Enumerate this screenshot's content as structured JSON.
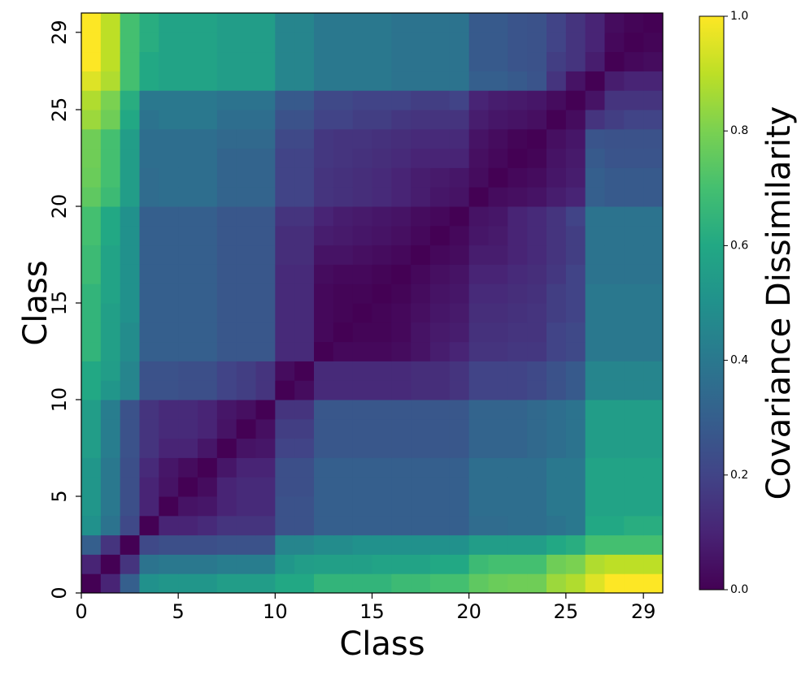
{
  "chart_data": {
    "type": "heatmap",
    "colormap": "viridis",
    "x_label": "Class",
    "y_label": "Class",
    "xlim": [
      0,
      30
    ],
    "xticks": [
      0,
      5,
      10,
      15,
      20,
      25,
      29
    ],
    "ylim": [
      0,
      30
    ],
    "yticks": [
      0,
      5,
      10,
      15,
      20,
      25,
      29
    ],
    "colorbar": {
      "label": "Covariance Dissimilarity",
      "lim": [
        0,
        1
      ],
      "ticks": [
        {
          "value": 0,
          "label": "0.0"
        },
        {
          "value": 0.2,
          "label": "0.2"
        },
        {
          "value": 0.4,
          "label": "0.4"
        },
        {
          "value": 0.6,
          "label": "0.6"
        },
        {
          "value": 0.8,
          "label": "0.8"
        },
        {
          "value": 1,
          "label": "1.0"
        }
      ]
    },
    "values": [
      [
        0,
        0.1,
        0.3,
        0.5,
        0.52,
        0.52,
        0.52,
        0.55,
        0.55,
        0.55,
        0.6,
        0.6,
        0.65,
        0.65,
        0.65,
        0.65,
        0.68,
        0.68,
        0.7,
        0.7,
        0.75,
        0.77,
        0.78,
        0.78,
        0.85,
        0.88,
        0.95,
        1,
        1,
        1
      ],
      [
        0.1,
        0,
        0.15,
        0.38,
        0.4,
        0.4,
        0.4,
        0.42,
        0.42,
        0.42,
        0.52,
        0.55,
        0.56,
        0.56,
        0.56,
        0.58,
        0.58,
        0.58,
        0.6,
        0.6,
        0.68,
        0.7,
        0.7,
        0.7,
        0.78,
        0.8,
        0.88,
        0.9,
        0.9,
        0.9
      ],
      [
        0.3,
        0.15,
        0,
        0.22,
        0.24,
        0.24,
        0.24,
        0.25,
        0.25,
        0.25,
        0.45,
        0.45,
        0.48,
        0.48,
        0.5,
        0.5,
        0.5,
        0.5,
        0.5,
        0.5,
        0.55,
        0.55,
        0.55,
        0.55,
        0.6,
        0.62,
        0.7,
        0.7,
        0.7,
        0.7
      ],
      [
        0.5,
        0.38,
        0.22,
        0,
        0.1,
        0.1,
        0.12,
        0.15,
        0.15,
        0.15,
        0.25,
        0.25,
        0.3,
        0.3,
        0.3,
        0.3,
        0.3,
        0.3,
        0.3,
        0.3,
        0.35,
        0.35,
        0.36,
        0.36,
        0.38,
        0.4,
        0.6,
        0.6,
        0.62,
        0.62
      ],
      [
        0.52,
        0.4,
        0.24,
        0.1,
        0,
        0.05,
        0.06,
        0.1,
        0.12,
        0.12,
        0.25,
        0.25,
        0.3,
        0.3,
        0.3,
        0.3,
        0.3,
        0.3,
        0.3,
        0.3,
        0.36,
        0.36,
        0.36,
        0.36,
        0.4,
        0.4,
        0.58,
        0.58,
        0.58,
        0.58
      ],
      [
        0.52,
        0.4,
        0.24,
        0.1,
        0.05,
        0,
        0.03,
        0.1,
        0.12,
        0.12,
        0.24,
        0.24,
        0.3,
        0.3,
        0.3,
        0.3,
        0.3,
        0.3,
        0.3,
        0.3,
        0.36,
        0.36,
        0.36,
        0.36,
        0.4,
        0.4,
        0.58,
        0.58,
        0.58,
        0.58
      ],
      [
        0.52,
        0.4,
        0.24,
        0.12,
        0.06,
        0.03,
        0,
        0.06,
        0.1,
        0.1,
        0.24,
        0.24,
        0.3,
        0.3,
        0.3,
        0.3,
        0.3,
        0.3,
        0.3,
        0.3,
        0.36,
        0.36,
        0.36,
        0.36,
        0.4,
        0.4,
        0.58,
        0.58,
        0.58,
        0.58
      ],
      [
        0.55,
        0.42,
        0.25,
        0.15,
        0.1,
        0.1,
        0.06,
        0,
        0.05,
        0.06,
        0.2,
        0.2,
        0.27,
        0.27,
        0.27,
        0.27,
        0.27,
        0.27,
        0.27,
        0.27,
        0.32,
        0.32,
        0.32,
        0.34,
        0.36,
        0.38,
        0.55,
        0.55,
        0.55,
        0.55
      ],
      [
        0.55,
        0.42,
        0.25,
        0.15,
        0.12,
        0.12,
        0.1,
        0.05,
        0,
        0.04,
        0.18,
        0.18,
        0.27,
        0.27,
        0.27,
        0.27,
        0.27,
        0.27,
        0.27,
        0.27,
        0.32,
        0.32,
        0.32,
        0.34,
        0.36,
        0.38,
        0.55,
        0.55,
        0.55,
        0.55
      ],
      [
        0.55,
        0.42,
        0.25,
        0.15,
        0.12,
        0.12,
        0.1,
        0.06,
        0.04,
        0,
        0.15,
        0.15,
        0.27,
        0.27,
        0.27,
        0.27,
        0.27,
        0.27,
        0.27,
        0.27,
        0.32,
        0.32,
        0.32,
        0.34,
        0.36,
        0.38,
        0.55,
        0.55,
        0.55,
        0.55
      ],
      [
        0.6,
        0.52,
        0.45,
        0.25,
        0.25,
        0.24,
        0.24,
        0.2,
        0.18,
        0.15,
        0,
        0.03,
        0.12,
        0.12,
        0.12,
        0.12,
        0.12,
        0.13,
        0.13,
        0.15,
        0.2,
        0.2,
        0.2,
        0.22,
        0.25,
        0.28,
        0.45,
        0.45,
        0.45,
        0.45
      ],
      [
        0.6,
        0.55,
        0.45,
        0.25,
        0.25,
        0.24,
        0.24,
        0.2,
        0.18,
        0.15,
        0.03,
        0,
        0.12,
        0.12,
        0.12,
        0.12,
        0.12,
        0.13,
        0.13,
        0.15,
        0.2,
        0.2,
        0.2,
        0.22,
        0.25,
        0.28,
        0.45,
        0.45,
        0.45,
        0.45
      ],
      [
        0.65,
        0.56,
        0.48,
        0.3,
        0.3,
        0.3,
        0.3,
        0.27,
        0.27,
        0.27,
        0.12,
        0.12,
        0,
        0.02,
        0.02,
        0.02,
        0.03,
        0.05,
        0.08,
        0.1,
        0.15,
        0.15,
        0.16,
        0.16,
        0.2,
        0.22,
        0.4,
        0.4,
        0.4,
        0.4
      ],
      [
        0.65,
        0.56,
        0.48,
        0.3,
        0.3,
        0.3,
        0.3,
        0.27,
        0.27,
        0.27,
        0.12,
        0.12,
        0.02,
        0,
        0.01,
        0.01,
        0.02,
        0.05,
        0.07,
        0.08,
        0.14,
        0.14,
        0.15,
        0.15,
        0.2,
        0.22,
        0.4,
        0.4,
        0.4,
        0.4
      ],
      [
        0.65,
        0.56,
        0.5,
        0.3,
        0.3,
        0.3,
        0.3,
        0.27,
        0.27,
        0.27,
        0.12,
        0.12,
        0.02,
        0.01,
        0,
        0.01,
        0.02,
        0.04,
        0.06,
        0.07,
        0.13,
        0.13,
        0.14,
        0.15,
        0.18,
        0.2,
        0.4,
        0.4,
        0.4,
        0.4
      ],
      [
        0.65,
        0.58,
        0.5,
        0.3,
        0.3,
        0.3,
        0.3,
        0.27,
        0.27,
        0.27,
        0.12,
        0.12,
        0.02,
        0.01,
        0.01,
        0,
        0.01,
        0.03,
        0.05,
        0.06,
        0.12,
        0.12,
        0.13,
        0.14,
        0.18,
        0.2,
        0.4,
        0.4,
        0.4,
        0.4
      ],
      [
        0.68,
        0.58,
        0.5,
        0.3,
        0.3,
        0.3,
        0.3,
        0.27,
        0.27,
        0.27,
        0.12,
        0.12,
        0.03,
        0.02,
        0.02,
        0.01,
        0,
        0.02,
        0.04,
        0.05,
        0.1,
        0.1,
        0.12,
        0.13,
        0.16,
        0.2,
        0.38,
        0.38,
        0.38,
        0.38
      ],
      [
        0.68,
        0.58,
        0.5,
        0.3,
        0.3,
        0.3,
        0.3,
        0.27,
        0.27,
        0.27,
        0.13,
        0.13,
        0.05,
        0.05,
        0.04,
        0.03,
        0.02,
        0,
        0.02,
        0.03,
        0.08,
        0.08,
        0.1,
        0.12,
        0.15,
        0.18,
        0.38,
        0.38,
        0.38,
        0.38
      ],
      [
        0.7,
        0.6,
        0.5,
        0.3,
        0.3,
        0.3,
        0.3,
        0.27,
        0.27,
        0.27,
        0.13,
        0.13,
        0.08,
        0.07,
        0.06,
        0.05,
        0.04,
        0.02,
        0,
        0.02,
        0.06,
        0.07,
        0.1,
        0.12,
        0.15,
        0.18,
        0.38,
        0.38,
        0.38,
        0.38
      ],
      [
        0.7,
        0.6,
        0.5,
        0.3,
        0.3,
        0.3,
        0.3,
        0.27,
        0.27,
        0.27,
        0.15,
        0.15,
        0.1,
        0.08,
        0.07,
        0.06,
        0.05,
        0.03,
        0.02,
        0,
        0.05,
        0.06,
        0.1,
        0.12,
        0.15,
        0.2,
        0.38,
        0.38,
        0.38,
        0.38
      ],
      [
        0.75,
        0.68,
        0.55,
        0.35,
        0.36,
        0.36,
        0.36,
        0.32,
        0.32,
        0.32,
        0.2,
        0.2,
        0.15,
        0.14,
        0.13,
        0.12,
        0.1,
        0.08,
        0.06,
        0.05,
        0,
        0.03,
        0.04,
        0.05,
        0.08,
        0.1,
        0.3,
        0.28,
        0.28,
        0.28
      ],
      [
        0.77,
        0.7,
        0.55,
        0.35,
        0.36,
        0.36,
        0.36,
        0.32,
        0.32,
        0.32,
        0.2,
        0.2,
        0.15,
        0.14,
        0.13,
        0.12,
        0.1,
        0.08,
        0.07,
        0.06,
        0.03,
        0,
        0.02,
        0.03,
        0.06,
        0.08,
        0.3,
        0.28,
        0.28,
        0.28
      ],
      [
        0.78,
        0.7,
        0.55,
        0.36,
        0.36,
        0.36,
        0.36,
        0.32,
        0.32,
        0.32,
        0.2,
        0.2,
        0.16,
        0.15,
        0.14,
        0.13,
        0.12,
        0.1,
        0.1,
        0.1,
        0.04,
        0.02,
        0,
        0.01,
        0.05,
        0.07,
        0.28,
        0.26,
        0.26,
        0.26
      ],
      [
        0.78,
        0.7,
        0.55,
        0.36,
        0.36,
        0.36,
        0.36,
        0.34,
        0.34,
        0.34,
        0.22,
        0.22,
        0.16,
        0.15,
        0.15,
        0.14,
        0.13,
        0.12,
        0.12,
        0.12,
        0.05,
        0.03,
        0.01,
        0,
        0.04,
        0.06,
        0.26,
        0.25,
        0.25,
        0.25
      ],
      [
        0.85,
        0.78,
        0.6,
        0.38,
        0.4,
        0.4,
        0.4,
        0.36,
        0.36,
        0.36,
        0.25,
        0.25,
        0.2,
        0.2,
        0.18,
        0.18,
        0.16,
        0.15,
        0.15,
        0.15,
        0.08,
        0.06,
        0.05,
        0.04,
        0,
        0.03,
        0.15,
        0.18,
        0.2,
        0.2
      ],
      [
        0.88,
        0.8,
        0.62,
        0.4,
        0.4,
        0.4,
        0.4,
        0.38,
        0.38,
        0.38,
        0.28,
        0.28,
        0.22,
        0.22,
        0.2,
        0.2,
        0.2,
        0.18,
        0.18,
        0.2,
        0.1,
        0.08,
        0.07,
        0.06,
        0.03,
        0,
        0.05,
        0.15,
        0.15,
        0.15
      ],
      [
        0.95,
        0.88,
        0.7,
        0.6,
        0.58,
        0.58,
        0.58,
        0.55,
        0.55,
        0.55,
        0.45,
        0.45,
        0.4,
        0.4,
        0.4,
        0.4,
        0.38,
        0.38,
        0.38,
        0.38,
        0.3,
        0.3,
        0.28,
        0.26,
        0.15,
        0.05,
        0,
        0.08,
        0.1,
        0.1
      ],
      [
        1,
        0.9,
        0.7,
        0.6,
        0.58,
        0.58,
        0.58,
        0.55,
        0.55,
        0.55,
        0.45,
        0.45,
        0.4,
        0.4,
        0.4,
        0.4,
        0.38,
        0.38,
        0.38,
        0.38,
        0.28,
        0.28,
        0.26,
        0.25,
        0.18,
        0.15,
        0.08,
        0,
        0.02,
        0.03
      ],
      [
        1,
        0.9,
        0.7,
        0.62,
        0.58,
        0.58,
        0.58,
        0.55,
        0.55,
        0.55,
        0.45,
        0.45,
        0.4,
        0.4,
        0.4,
        0.4,
        0.38,
        0.38,
        0.38,
        0.38,
        0.28,
        0.28,
        0.26,
        0.25,
        0.2,
        0.15,
        0.1,
        0.02,
        0,
        0.01
      ],
      [
        1,
        0.9,
        0.7,
        0.62,
        0.58,
        0.58,
        0.58,
        0.55,
        0.55,
        0.55,
        0.45,
        0.45,
        0.4,
        0.4,
        0.4,
        0.4,
        0.38,
        0.38,
        0.38,
        0.38,
        0.28,
        0.28,
        0.26,
        0.25,
        0.2,
        0.15,
        0.1,
        0.03,
        0.01,
        0
      ]
    ]
  }
}
